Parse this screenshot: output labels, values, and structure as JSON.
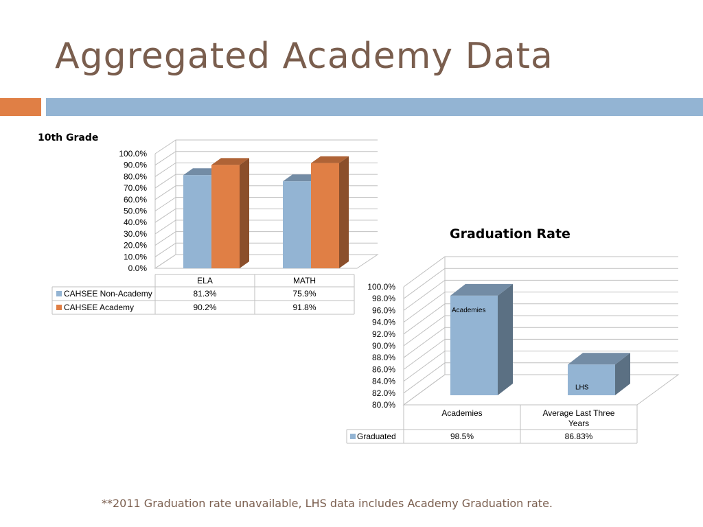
{
  "slide": {
    "title": "Aggregated Academy Data",
    "footnote": "**2011 Graduation rate unavailable, LHS data includes Academy Graduation rate.",
    "accent_color": "#e07f45",
    "rule_color": "#93b4d3",
    "title_color": "#7a5e4e"
  },
  "chart_data": [
    {
      "type": "bar",
      "title": "10th Grade",
      "categories": [
        "ELA",
        "MATH"
      ],
      "series": [
        {
          "name": "CAHSEE Non-Academy",
          "values": [
            81.3,
            75.9
          ],
          "labels": [
            "81.3%",
            "75.9%"
          ],
          "color": "#93b4d3"
        },
        {
          "name": "CAHSEE Academy",
          "values": [
            90.2,
            91.8
          ],
          "labels": [
            "90.2%",
            "91.8%"
          ],
          "color": "#e07f45"
        }
      ],
      "ylim": [
        0,
        100
      ],
      "yticks": [
        "0.0%",
        "10.0%",
        "20.0%",
        "30.0%",
        "40.0%",
        "50.0%",
        "60.0%",
        "70.0%",
        "80.0%",
        "90.0%",
        "100.0%"
      ],
      "grid": true,
      "legend": "data-table"
    },
    {
      "type": "bar",
      "title": "Graduation Rate",
      "categories": [
        "Academies",
        "Average Last Three Years"
      ],
      "series": [
        {
          "name": "Graduated",
          "values": [
            98.5,
            86.83
          ],
          "labels": [
            "98.5%",
            "86.83%"
          ],
          "color": "#93b4d3"
        }
      ],
      "bar_labels": [
        "Academies",
        "LHS"
      ],
      "ylim": [
        80,
        100
      ],
      "yticks": [
        "80.0%",
        "82.0%",
        "84.0%",
        "86.0%",
        "88.0%",
        "90.0%",
        "92.0%",
        "94.0%",
        "96.0%",
        "98.0%",
        "100.0%"
      ],
      "grid": true,
      "legend": "data-table"
    }
  ]
}
